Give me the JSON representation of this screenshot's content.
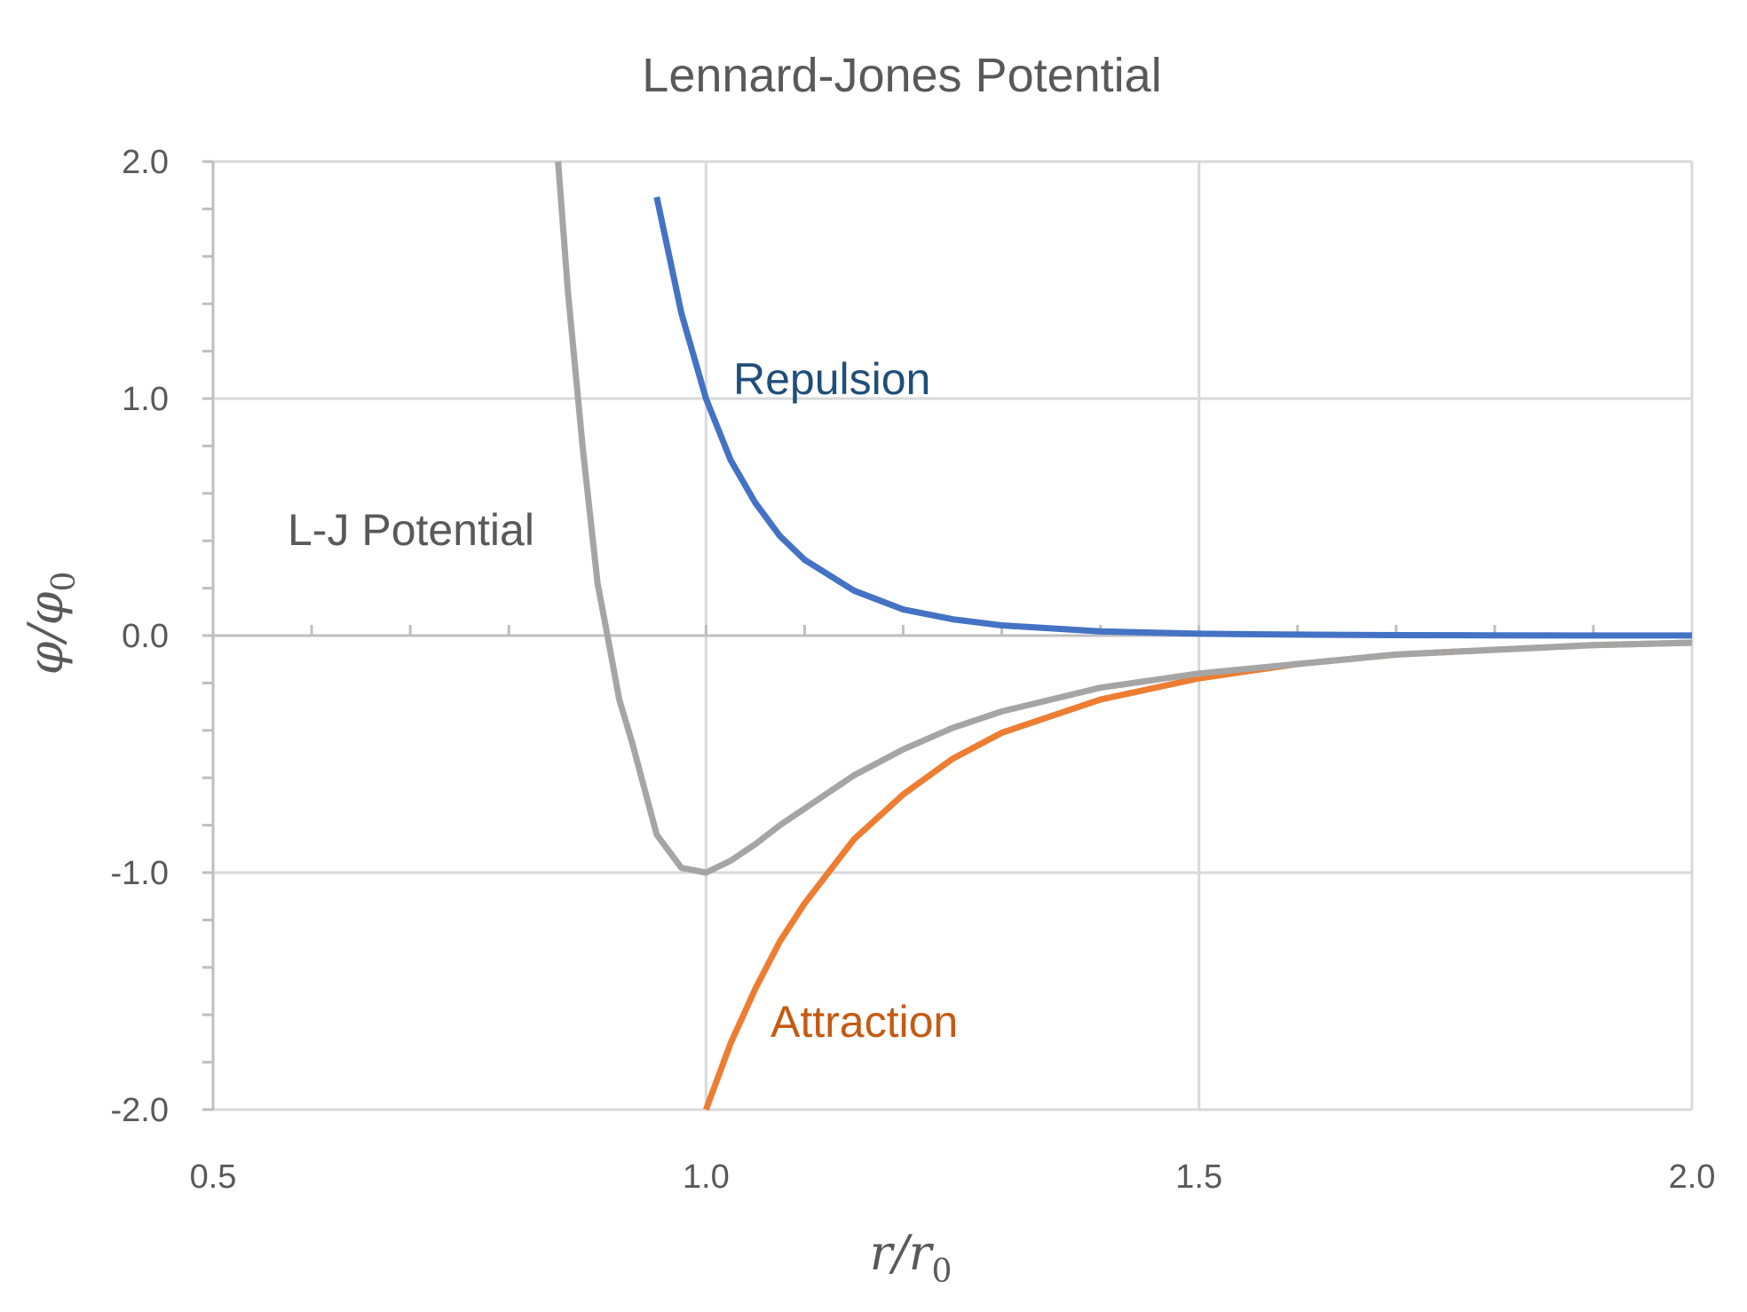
{
  "chart_data": {
    "type": "line",
    "title": "Lennard-Jones Potential",
    "xlabel": {
      "main": "r/r",
      "sub": "0"
    },
    "ylabel": {
      "main": "φ/φ",
      "sub": "0"
    },
    "xlim": [
      0.5,
      2.0
    ],
    "ylim": [
      -2.0,
      2.0
    ],
    "x_ticks": [
      "0.5",
      "1.0",
      "1.5",
      "2.0"
    ],
    "y_ticks": [
      "2.0",
      "1.0",
      "0.0",
      "-1.0",
      "-2.0"
    ],
    "grid": true,
    "legend": "none",
    "series": [
      {
        "key": "repulsion",
        "color": "#4472C4",
        "x": [
          0.95,
          0.975,
          1.0,
          1.025,
          1.05,
          1.075,
          1.1,
          1.15,
          1.2,
          1.25,
          1.3,
          1.4,
          1.5,
          1.6,
          1.7,
          1.8,
          1.9,
          2.0
        ],
        "y": [
          1.85,
          1.36,
          1.0,
          0.74,
          0.56,
          0.42,
          0.32,
          0.19,
          0.11,
          0.069,
          0.043,
          0.018,
          0.008,
          0.004,
          0.002,
          0.001,
          0.0005,
          0.0002
        ]
      },
      {
        "key": "attraction",
        "color": "#ED7D31",
        "x": [
          1.0,
          1.025,
          1.05,
          1.075,
          1.1,
          1.15,
          1.2,
          1.25,
          1.3,
          1.4,
          1.5,
          1.6,
          1.7,
          1.8,
          1.9,
          2.0
        ],
        "y": [
          -2.0,
          -1.72,
          -1.49,
          -1.29,
          -1.13,
          -0.86,
          -0.67,
          -0.52,
          -0.41,
          -0.27,
          -0.18,
          -0.12,
          -0.08,
          -0.06,
          -0.04,
          -0.03
        ]
      },
      {
        "key": "lj",
        "color": "#A5A5A5",
        "x": [
          0.85,
          0.86,
          0.875,
          0.89,
          0.9,
          0.912,
          0.925,
          0.95,
          0.975,
          1.0,
          1.025,
          1.05,
          1.075,
          1.1,
          1.15,
          1.2,
          1.25,
          1.3,
          1.4,
          1.5,
          1.6,
          1.7,
          1.8,
          1.9,
          2.0
        ],
        "y": [
          2.0,
          1.45,
          0.79,
          0.22,
          0.0,
          -0.27,
          -0.45,
          -0.84,
          -0.98,
          -1.0,
          -0.95,
          -0.88,
          -0.8,
          -0.73,
          -0.59,
          -0.48,
          -0.39,
          -0.32,
          -0.22,
          -0.16,
          -0.12,
          -0.08,
          -0.06,
          -0.04,
          -0.03
        ]
      }
    ],
    "annotations": [
      {
        "key": "repulsion",
        "text": "Repulsion",
        "color": "#1F4E79"
      },
      {
        "key": "lj",
        "text": "L-J Potential",
        "color": "#595959"
      },
      {
        "key": "attraction",
        "text": "Attraction",
        "color": "#C55A11"
      }
    ]
  }
}
